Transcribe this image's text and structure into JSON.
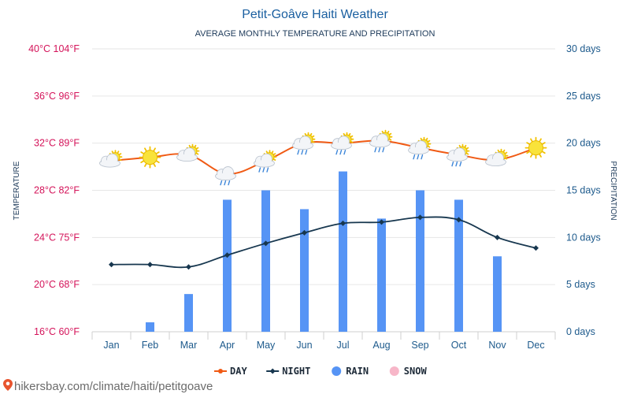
{
  "chart_data": {
    "type": "bar+line",
    "title": "Petit-Goâve Haiti Weather",
    "subtitle": "AVERAGE MONTHLY TEMPERATURE AND PRECIPITATION",
    "ylabel_left": "TEMPERATURE",
    "ylabel_right": "PRECIPITATION",
    "categories": [
      "Jan",
      "Feb",
      "Mar",
      "Apr",
      "May",
      "Jun",
      "Jul",
      "Aug",
      "Sep",
      "Oct",
      "Nov",
      "Dec"
    ],
    "left_ticks": [
      "16°C 60°F",
      "20°C 68°F",
      "24°C 75°F",
      "28°C 82°F",
      "32°C 89°F",
      "36°C 96°F",
      "40°C 104°F"
    ],
    "right_ticks": [
      "0 days",
      "5 days",
      "10 days",
      "15 days",
      "20 days",
      "25 days",
      "30 days"
    ],
    "ylim_left": [
      16,
      40
    ],
    "ylim_right": [
      0,
      30
    ],
    "series": [
      {
        "name": "DAY",
        "type": "line",
        "color": "#f05a14",
        "values": [
          30.5,
          30.8,
          31.0,
          29.4,
          30.5,
          32.0,
          32.0,
          32.2,
          31.6,
          31.0,
          30.6,
          31.6
        ]
      },
      {
        "name": "NIGHT",
        "type": "line",
        "color": "#17374f",
        "values": [
          21.7,
          21.7,
          21.5,
          22.5,
          23.5,
          24.4,
          25.2,
          25.3,
          25.7,
          25.5,
          24.0,
          23.1
        ]
      },
      {
        "name": "RAIN",
        "type": "bar",
        "color": "#5694f5",
        "values": [
          0,
          1,
          4,
          14,
          15,
          13,
          17,
          12,
          15,
          14,
          8,
          0
        ]
      },
      {
        "name": "SNOW",
        "type": "bar",
        "color": "#f7b6c8",
        "values": [
          0,
          0,
          0,
          0,
          0,
          0,
          0,
          0,
          0,
          0,
          0,
          0
        ]
      }
    ],
    "weather_icons": [
      "sun-cloud-icon",
      "sun-icon",
      "sun-cloud-icon",
      "cloud-rain-icon",
      "sun-cloud-rain-icon",
      "sun-cloud-rain-icon",
      "sun-cloud-rain-icon",
      "sun-cloud-rain-icon",
      "sun-cloud-rain-icon",
      "sun-cloud-rain-icon",
      "sun-cloud-icon",
      "sun-icon"
    ],
    "grid": true,
    "legend_position": "bottom-center"
  },
  "footer": {
    "url": "hikersbay.com/climate/haiti/petitgoave",
    "icon": "location-pin-icon"
  },
  "colors": {
    "title": "#1a5fa0",
    "left_axis": "#d4145a",
    "right_axis": "#1d5a8c",
    "grid": "#e6e6e6"
  }
}
